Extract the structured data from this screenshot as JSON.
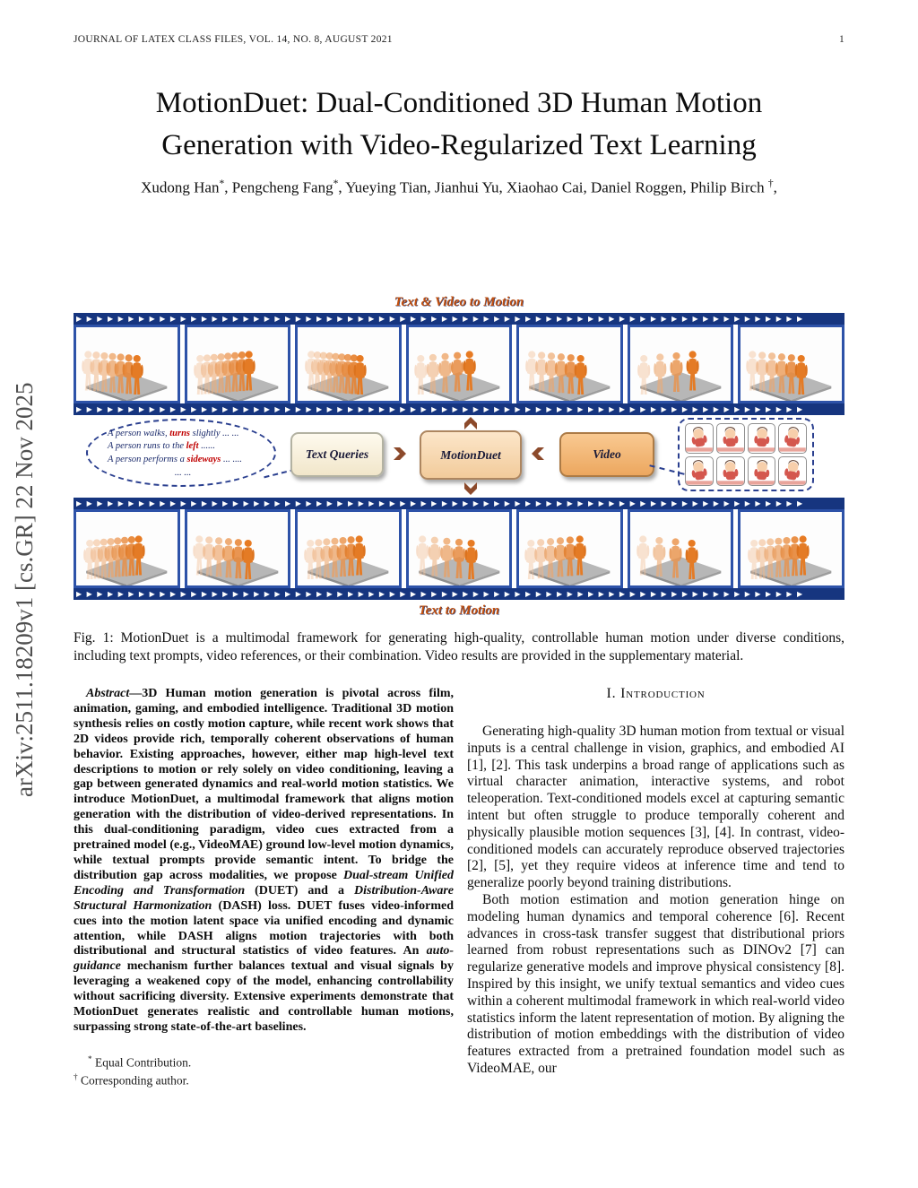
{
  "header": {
    "journal": "JOURNAL OF LATEX CLASS FILES, VOL. 14, NO. 8, AUGUST 2021",
    "page_number": "1"
  },
  "watermark": "arXiv:2511.18209v1 [cs.GR] 22 Nov 2025",
  "title": "MotionDuet: Dual-Conditioned 3D Human Motion Generation with Video-Regularized Text Learning",
  "authors_segments": [
    {
      "t": "Xudong Han"
    },
    {
      "t": "*",
      "s": "sup"
    },
    {
      "t": ", Pengcheng Fang"
    },
    {
      "t": "*",
      "s": "sup"
    },
    {
      "t": ", Yueying Tian, Jianhui Yu, Xiaohao Cai, Daniel Roggen, Philip Birch "
    },
    {
      "t": "†",
      "s": "sup"
    },
    {
      "t": ","
    }
  ],
  "figure": {
    "top_label": "Text & Video to Motion",
    "bottom_label": "Text to Motion",
    "strip_frame_count": 7,
    "bubble": {
      "lines": [
        [
          {
            "t": "A person walks, "
          },
          {
            "t": "turns",
            "s": "red"
          },
          {
            "t": " slightly ... ..."
          }
        ],
        [
          {
            "t": "A person runs to the "
          },
          {
            "t": "left",
            "s": "red"
          },
          {
            "t": " ......"
          }
        ],
        [
          {
            "t": "A person performs a "
          },
          {
            "t": "sideways",
            "s": "red"
          },
          {
            "t": " ... ...."
          }
        ],
        [
          {
            "t": "... ..."
          }
        ]
      ]
    },
    "boxes": {
      "text_queries": "Text Queries",
      "motionduet": "MotionDuet",
      "video": "Video"
    },
    "video_thumb_count": 8,
    "caption": "Fig. 1: MotionDuet is a multimodal framework for generating high-quality, controllable human motion under diverse conditions, including text prompts, video references, or their combination. Video results are provided in the supplementary material."
  },
  "abstract_segments": [
    {
      "t": "Abstract",
      "s": "i"
    },
    {
      "t": "—3D Human motion generation is pivotal across film, animation, gaming, and embodied intelligence. Traditional 3D motion synthesis relies on costly motion capture, while recent work shows that 2D videos provide rich, temporally coherent observations of human behavior. Existing approaches, however, either map high-level text descriptions to motion or rely solely on video conditioning, leaving a gap between generated dynamics and real-world motion statistics. We introduce MotionDuet, a multimodal framework that aligns motion generation with the distribution of video-derived representations. In this dual-conditioning paradigm, video cues extracted from a pretrained model (e.g., VideoMAE) ground low-level motion dynamics, while textual prompts provide semantic intent. To bridge the distribution gap across modalities, we propose "
    },
    {
      "t": "Dual-stream Unified Encoding and Transformation",
      "s": "i"
    },
    {
      "t": " (DUET) and a "
    },
    {
      "t": "Distribution-Aware Structural Harmonization",
      "s": "i"
    },
    {
      "t": " (DASH) loss. DUET fuses video-informed cues into the motion latent space via unified encoding and dynamic attention, while DASH aligns motion trajectories with both distributional and structural statistics of video features. An "
    },
    {
      "t": "auto-guidance",
      "s": "i"
    },
    {
      "t": " mechanism further balances textual and visual signals by leveraging a weakened copy of the model, enhancing controllability without sacrificing diversity. Extensive experiments demonstrate that MotionDuet generates realistic and controllable human motions, surpassing strong state-of-the-art baselines."
    }
  ],
  "footnotes": {
    "equal_contribution": [
      {
        "t": "*",
        "s": "sup"
      },
      {
        "t": " Equal Contribution."
      }
    ],
    "corresponding_author": [
      {
        "t": "†",
        "s": "sup"
      },
      {
        "t": " Corresponding author."
      }
    ]
  },
  "introduction": {
    "heading": "I. Introduction",
    "p1": "Generating high-quality 3D human motion from textual or visual inputs is a central challenge in vision, graphics, and embodied AI [1], [2]. This task underpins a broad range of applications such as virtual character animation, interactive systems, and robot teleoperation. Text-conditioned models excel at capturing semantic intent but often struggle to produce temporally coherent and physically plausible motion sequences [3], [4]. In contrast, video-conditioned models can accurately reproduce observed trajectories [2], [5], yet they require videos at inference time and tend to generalize poorly beyond training distributions.",
    "p2": "Both motion estimation and motion generation hinge on modeling human dynamics and temporal coherence [6]. Recent advances in cross-task transfer suggest that distributional priors learned from robust representations such as DINOv2 [7] can regularize generative models and improve physical consistency [8]. Inspired by this insight, we unify textual semantics and video cues within a coherent multimodal framework in which real-world video statistics inform the latent representation of motion. By aligning the distribution of motion embeddings with the distribution of video features extracted from a pretrained foundation model such as VideoMAE, our"
  },
  "colors": {
    "film_navy": "#16357f",
    "frame_blue": "#2d52a8",
    "figure_label_orange": "#c3500e",
    "highlight_red": "#c00000",
    "bubble_navy": "#1a2a6b",
    "arrow_brown": "#8c4a2b",
    "box_cream": "#f6ecd2",
    "box_peach": "#f5d2a3",
    "box_orange": "#f0b273",
    "silhouette_orange": "#e8944a",
    "watermark_gray": "#4f4f4f"
  }
}
